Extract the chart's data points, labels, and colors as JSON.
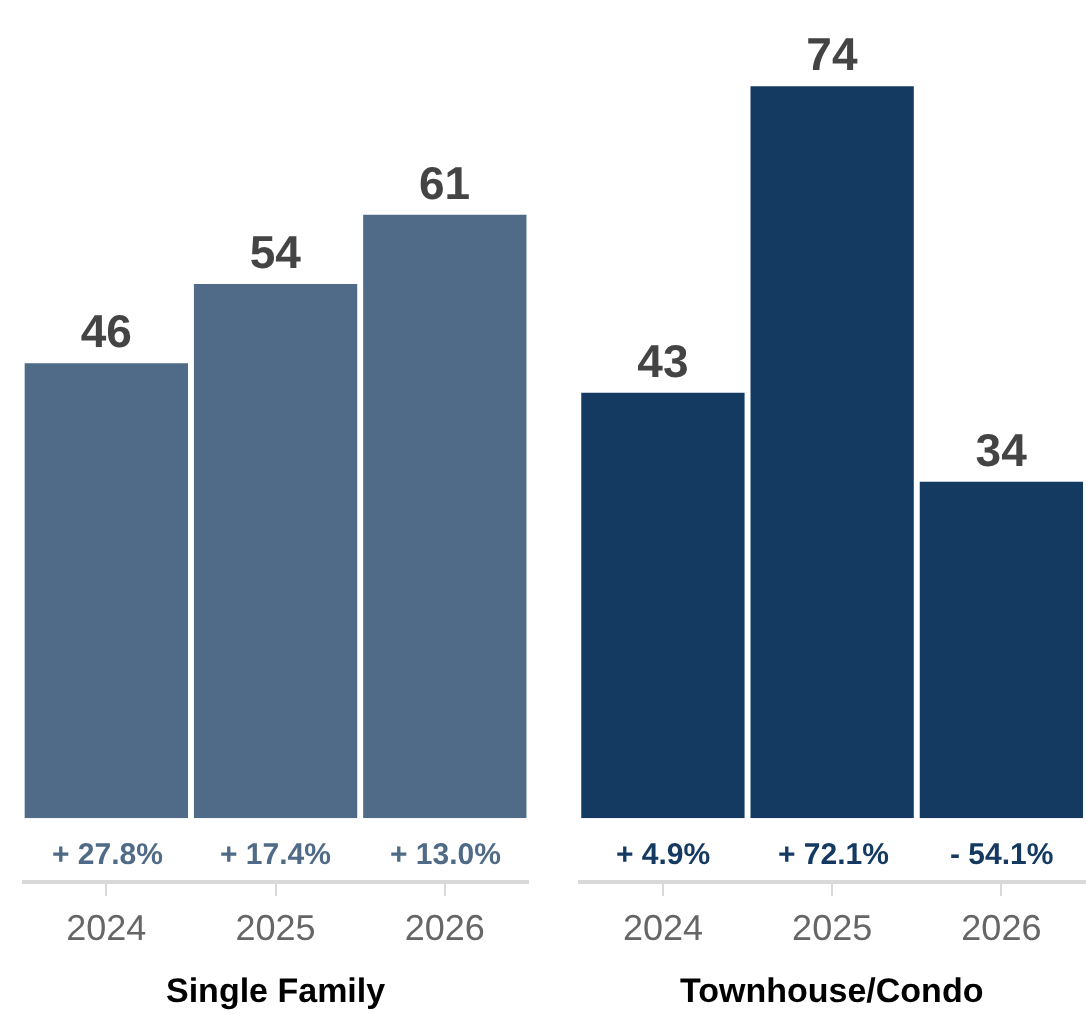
{
  "chart_data": [
    {
      "type": "bar",
      "xlabel": "Single Family",
      "categories": [
        "2024",
        "2025",
        "2026"
      ],
      "values": [
        46,
        54,
        61
      ],
      "color": "#506b87",
      "data_labels": true,
      "tick_labels": "x",
      "annotations": [
        "+ 27.8%",
        "+ 17.4%",
        "+ 13.0%"
      ]
    },
    {
      "type": "bar",
      "xlabel": "Townhouse/Condo",
      "categories": [
        "2024",
        "2025",
        "2026"
      ],
      "values": [
        43,
        74,
        34
      ],
      "color": "#143a62",
      "data_labels": true,
      "tick_labels": "x",
      "annotations": [
        "+ 4.9%",
        "+ 72.1%",
        "- 54.1%"
      ]
    }
  ]
}
